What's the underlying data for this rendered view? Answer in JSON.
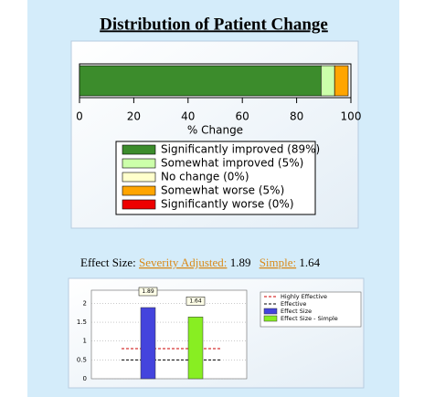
{
  "title": "Distribution of Patient Change",
  "effect_size": {
    "label": "Effect Size:",
    "items": [
      {
        "label": "Severity Adjusted:",
        "value": 1.89
      },
      {
        "label": "Simple:",
        "value": 1.64
      }
    ]
  },
  "chart_data": [
    {
      "type": "stacked-hbar",
      "x_label": "% Change",
      "xlim": [
        0,
        100
      ],
      "xticks": [
        0,
        20,
        40,
        60,
        80,
        100
      ],
      "series": [
        {
          "name": "Significantly improved (89%)",
          "color": "#3c8c2c",
          "values": [
            89
          ]
        },
        {
          "name": "Somewhat improved (5%)",
          "color": "#ccffaa",
          "values": [
            5
          ]
        },
        {
          "name": "No change (0%)",
          "color": "#ffffcc",
          "values": [
            0
          ]
        },
        {
          "name": "Somewhat worse (5%)",
          "color": "#ffa500",
          "values": [
            5
          ]
        },
        {
          "name": "Significantly worse (0%)",
          "color": "#ee0000",
          "values": [
            0
          ]
        }
      ]
    },
    {
      "type": "bar-with-reference",
      "ylim": [
        0,
        2.35
      ],
      "yticks": [
        0,
        0.5,
        1,
        1.5,
        2
      ],
      "grid": true,
      "series": [
        {
          "name": "Highly Effective",
          "color": "#cc0000",
          "kind": "reference",
          "values": [
            0.8
          ]
        },
        {
          "name": "Effective",
          "color": "#000000",
          "kind": "reference",
          "values": [
            0.5
          ]
        },
        {
          "name": "Effect Size",
          "color": "#4444dd",
          "kind": "bar",
          "values": [
            1.89
          ]
        },
        {
          "name": "Effect Size - Simple",
          "color": "#88ee22",
          "kind": "bar",
          "values": [
            1.64
          ]
        }
      ]
    }
  ]
}
